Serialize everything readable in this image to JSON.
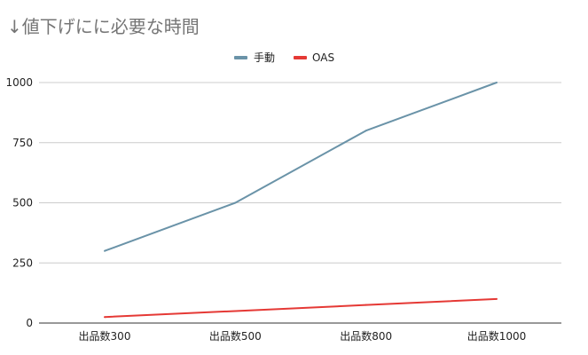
{
  "chart_data": {
    "type": "line",
    "title": "↓値下げにに必要な時間",
    "categories": [
      "出品数300",
      "出品数500",
      "出品数800",
      "出品数1000"
    ],
    "series": [
      {
        "name": "手動",
        "values": [
          300,
          500,
          800,
          1000
        ],
        "color": "#6a93a8"
      },
      {
        "name": "OAS",
        "values": [
          25,
          50,
          75,
          100
        ],
        "color": "#e53935"
      }
    ],
    "y_ticks": [
      0,
      250,
      500,
      750,
      1000
    ],
    "ylim": [
      0,
      1000
    ],
    "grid": true,
    "legend_position": "top"
  }
}
